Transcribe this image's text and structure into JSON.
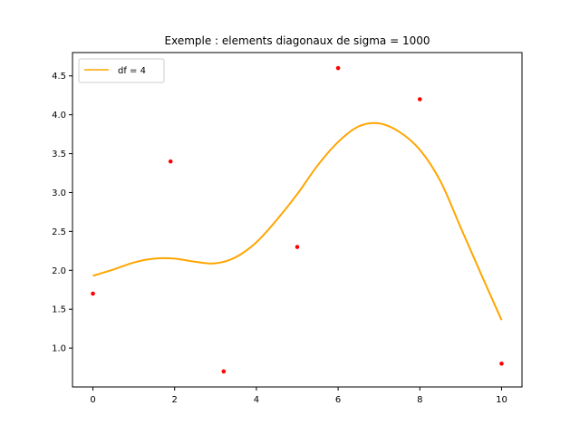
{
  "chart_data": {
    "type": "line",
    "title": "Exemple : elements diagonaux de sigma = 1000",
    "xlabel": "",
    "ylabel": "",
    "xlim": [
      -0.5,
      10.5
    ],
    "ylim": [
      0.5,
      4.8
    ],
    "xticks": [
      0,
      2,
      4,
      6,
      8,
      10
    ],
    "yticks": [
      1.0,
      1.5,
      2.0,
      2.5,
      3.0,
      3.5,
      4.0,
      4.5
    ],
    "xtick_labels": [
      "0",
      "2",
      "4",
      "6",
      "8",
      "10"
    ],
    "ytick_labels": [
      "1.0",
      "1.5",
      "2.0",
      "2.5",
      "3.0",
      "3.5",
      "4.0",
      "4.5"
    ],
    "grid": false,
    "legend_position": "upper left",
    "colors": {
      "line": "#ffa500",
      "points": "#ff0000"
    },
    "series": [
      {
        "name": "df = 4",
        "kind": "line",
        "x": [
          0,
          0.5,
          1.0,
          1.5,
          2.0,
          2.5,
          3.0,
          3.5,
          4.0,
          4.5,
          5.0,
          5.5,
          6.0,
          6.5,
          7.0,
          7.5,
          8.0,
          8.5,
          9.0,
          9.5,
          10.0
        ],
        "y": [
          1.93,
          2.01,
          2.1,
          2.15,
          2.15,
          2.11,
          2.09,
          2.17,
          2.36,
          2.65,
          2.98,
          3.35,
          3.65,
          3.85,
          3.89,
          3.78,
          3.55,
          3.15,
          2.55,
          1.95,
          1.36
        ]
      },
      {
        "name": "",
        "kind": "scatter",
        "x": [
          0,
          1.9,
          3.2,
          5.0,
          6.0,
          8.0,
          10.0
        ],
        "y": [
          1.7,
          3.4,
          0.7,
          2.3,
          4.6,
          4.2,
          0.8
        ]
      }
    ]
  }
}
